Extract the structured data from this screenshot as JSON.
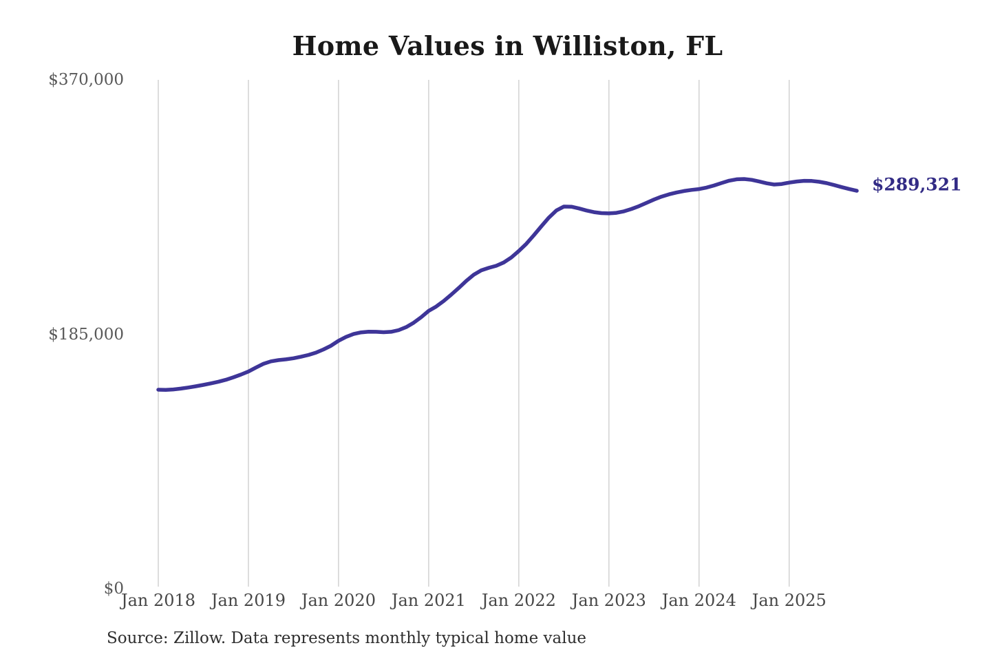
{
  "page": {
    "title": "Home Values in Williston, FL",
    "source_note": "Source: Zillow. Data represents monthly typical home value"
  },
  "chart_data": {
    "type": "line",
    "title": "Home Values in Williston, FL",
    "series_name": "Monthly typical home value",
    "grid": "vertical",
    "legend": "none",
    "line_color": "#3e3598",
    "gridline_color": "#c6c6c6",
    "ylim": [
      0,
      370000
    ],
    "y_ticks": [
      {
        "value": 0,
        "label": "$0"
      },
      {
        "value": 185000,
        "label": "$185,000"
      },
      {
        "value": 370000,
        "label": "$370,000"
      }
    ],
    "x_ticks": [
      {
        "month_index": 0,
        "label": "Jan 2018"
      },
      {
        "month_index": 12,
        "label": "Jan 2019"
      },
      {
        "month_index": 24,
        "label": "Jan 2020"
      },
      {
        "month_index": 36,
        "label": "Jan 2021"
      },
      {
        "month_index": 48,
        "label": "Jan 2022"
      },
      {
        "month_index": 60,
        "label": "Jan 2023"
      },
      {
        "month_index": 72,
        "label": "Jan 2024"
      },
      {
        "month_index": 84,
        "label": "Jan 2025"
      }
    ],
    "x": [
      "Jan 2018",
      "Feb 2018",
      "Mar 2018",
      "Apr 2018",
      "May 2018",
      "Jun 2018",
      "Jul 2018",
      "Aug 2018",
      "Sep 2018",
      "Oct 2018",
      "Nov 2018",
      "Dec 2018",
      "Jan 2019",
      "Feb 2019",
      "Mar 2019",
      "Apr 2019",
      "May 2019",
      "Jun 2019",
      "Jul 2019",
      "Aug 2019",
      "Sep 2019",
      "Oct 2019",
      "Nov 2019",
      "Dec 2019",
      "Jan 2020",
      "Feb 2020",
      "Mar 2020",
      "Apr 2020",
      "May 2020",
      "Jun 2020",
      "Jul 2020",
      "Aug 2020",
      "Sep 2020",
      "Oct 2020",
      "Nov 2020",
      "Dec 2020",
      "Jan 2021",
      "Feb 2021",
      "Mar 2021",
      "Apr 2021",
      "May 2021",
      "Jun 2021",
      "Jul 2021",
      "Aug 2021",
      "Sep 2021",
      "Oct 2021",
      "Nov 2021",
      "Dec 2021",
      "Jan 2022",
      "Feb 2022",
      "Mar 2022",
      "Apr 2022",
      "May 2022",
      "Jun 2022",
      "Jul 2022",
      "Aug 2022",
      "Sep 2022",
      "Oct 2022",
      "Nov 2022",
      "Dec 2022",
      "Jan 2023",
      "Feb 2023",
      "Mar 2023",
      "Apr 2023",
      "May 2023",
      "Jun 2023",
      "Jul 2023",
      "Aug 2023",
      "Sep 2023",
      "Oct 2023",
      "Nov 2023",
      "Dec 2023",
      "Jan 2024",
      "Feb 2024",
      "Mar 2024",
      "Apr 2024",
      "May 2024",
      "Jun 2024",
      "Jul 2024",
      "Aug 2024",
      "Sep 2024",
      "Oct 2024",
      "Nov 2024",
      "Dec 2024",
      "Jan 2025",
      "Feb 2025",
      "Mar 2025",
      "Apr 2025",
      "May 2025",
      "Jun 2025",
      "Jul 2025",
      "Aug 2025",
      "Sep 2025",
      "Oct 2025"
    ],
    "values": [
      144700,
      144600,
      144900,
      145500,
      146300,
      147200,
      148200,
      149300,
      150500,
      151900,
      153700,
      155700,
      157900,
      160800,
      163500,
      165300,
      166200,
      166800,
      167600,
      168700,
      170000,
      171700,
      174000,
      176700,
      180300,
      183100,
      185200,
      186400,
      186900,
      186800,
      186500,
      186800,
      188000,
      190200,
      193400,
      197400,
      202000,
      205200,
      209200,
      213800,
      218700,
      223800,
      228300,
      231500,
      233300,
      234800,
      237200,
      240900,
      245600,
      250800,
      257000,
      263500,
      269800,
      275000,
      277900,
      277800,
      276500,
      275000,
      273800,
      273100,
      272900,
      273300,
      274400,
      276100,
      278200,
      280600,
      283000,
      285100,
      286800,
      288100,
      289200,
      290000,
      290600,
      291700,
      293200,
      295000,
      296700,
      297700,
      297900,
      297300,
      296100,
      294800,
      293900,
      294300,
      295300,
      296100,
      296600,
      296500,
      295900,
      294900,
      293500,
      292000,
      290600,
      289321
    ],
    "end_label": {
      "text": "$289,321",
      "value": 289321,
      "color": "#322b85"
    }
  }
}
